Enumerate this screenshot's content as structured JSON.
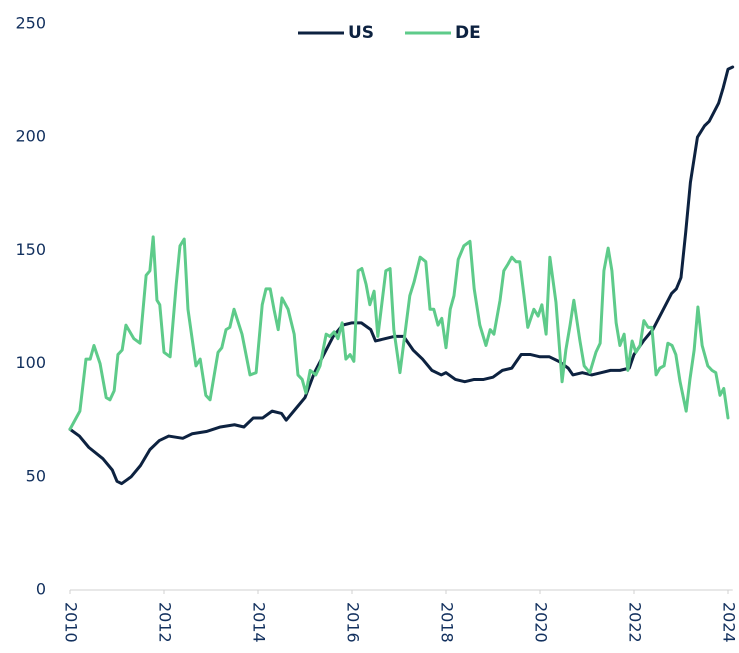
{
  "chart_data": {
    "type": "line",
    "series": [
      {
        "name": "US",
        "color": "#0d2240",
        "x": [
          2010.0,
          2010.2,
          2010.4,
          2010.7,
          2010.9,
          2011.0,
          2011.1,
          2011.3,
          2011.5,
          2011.7,
          2011.9,
          2012.1,
          2012.4,
          2012.6,
          2012.9,
          2013.2,
          2013.5,
          2013.7,
          2013.9,
          2014.1,
          2014.3,
          2014.5,
          2014.6,
          2014.8,
          2015.0,
          2015.2,
          2015.4,
          2015.6,
          2015.8,
          2016.0,
          2016.2,
          2016.4,
          2016.5,
          2016.7,
          2016.9,
          2017.1,
          2017.3,
          2017.5,
          2017.7,
          2017.9,
          2018.0,
          2018.2,
          2018.4,
          2018.6,
          2018.8,
          2019.0,
          2019.2,
          2019.4,
          2019.6,
          2019.8,
          2020.0,
          2020.2,
          2020.4,
          2020.6,
          2020.7,
          2020.9,
          2021.1,
          2021.3,
          2021.5,
          2021.7,
          2021.9,
          2022.0,
          2022.2,
          2022.4,
          2022.6,
          2022.8,
          2022.9,
          2023.0,
          2023.1,
          2023.2,
          2023.35,
          2023.5,
          2023.6,
          2023.8,
          2023.9,
          2024.0,
          2024.1
        ],
        "values": [
          71,
          68,
          63,
          58,
          53,
          48,
          47,
          50,
          55,
          62,
          66,
          68,
          67,
          69,
          70,
          72,
          73,
          72,
          76,
          76,
          79,
          78,
          75,
          80,
          85,
          96,
          104,
          112,
          117,
          118,
          118,
          115,
          110,
          111,
          112,
          112,
          106,
          102,
          97,
          95,
          96,
          93,
          92,
          93,
          93,
          94,
          97,
          98,
          104,
          104,
          103,
          103,
          101,
          98,
          95,
          96,
          95,
          96,
          97,
          97,
          98,
          104,
          110,
          115,
          123,
          131,
          133,
          138,
          158,
          180,
          200,
          205,
          207,
          215,
          222,
          230,
          231
        ]
      },
      {
        "name": "DE",
        "color": "#5ecb8a",
        "x": [
          2010.0,
          2010.21,
          2010.34,
          2010.43,
          2010.51,
          2010.64,
          2010.77,
          2010.85,
          2010.94,
          2011.02,
          2011.11,
          2011.19,
          2011.36,
          2011.49,
          2011.62,
          2011.7,
          2011.77,
          2011.85,
          2011.91,
          2012.0,
          2012.13,
          2012.26,
          2012.34,
          2012.43,
          2012.51,
          2012.68,
          2012.77,
          2012.89,
          2012.98,
          2013.15,
          2013.23,
          2013.32,
          2013.4,
          2013.49,
          2013.66,
          2013.83,
          2013.96,
          2014.09,
          2014.17,
          2014.26,
          2014.34,
          2014.43,
          2014.51,
          2014.64,
          2014.77,
          2014.85,
          2014.94,
          2015.02,
          2015.11,
          2015.23,
          2015.32,
          2015.45,
          2015.53,
          2015.62,
          2015.7,
          2015.79,
          2015.87,
          2015.96,
          2016.04,
          2016.13,
          2016.21,
          2016.3,
          2016.38,
          2016.47,
          2016.55,
          2016.72,
          2016.81,
          2016.89,
          2017.02,
          2017.15,
          2017.23,
          2017.32,
          2017.45,
          2017.57,
          2017.66,
          2017.74,
          2017.83,
          2017.91,
          2018.0,
          2018.09,
          2018.17,
          2018.26,
          2018.38,
          2018.51,
          2018.6,
          2018.72,
          2018.85,
          2018.94,
          2019.02,
          2019.15,
          2019.23,
          2019.32,
          2019.4,
          2019.49,
          2019.57,
          2019.66,
          2019.74,
          2019.87,
          2019.96,
          2020.04,
          2020.13,
          2020.21,
          2020.34,
          2020.47,
          2020.55,
          2020.64,
          2020.72,
          2020.85,
          2020.94,
          2021.06,
          2021.19,
          2021.28,
          2021.36,
          2021.45,
          2021.53,
          2021.62,
          2021.7,
          2021.79,
          2021.87,
          2021.96,
          2022.04,
          2022.13,
          2022.21,
          2022.3,
          2022.38,
          2022.47,
          2022.55,
          2022.64,
          2022.72,
          2022.81,
          2022.89,
          2022.98,
          2023.11,
          2023.19,
          2023.28,
          2023.36,
          2023.45,
          2023.57,
          2023.66,
          2023.74,
          2023.83,
          2023.91,
          2024.0
        ],
        "values": [
          71,
          79,
          102,
          102,
          108,
          100,
          85,
          84,
          88,
          104,
          106,
          117,
          111,
          109,
          139,
          141,
          156,
          128,
          126,
          105,
          103,
          135,
          152,
          155,
          124,
          99,
          102,
          86,
          84,
          105,
          107,
          115,
          116,
          124,
          113,
          95,
          96,
          126,
          133,
          133,
          124,
          115,
          129,
          124,
          113,
          95,
          93,
          87,
          97,
          95,
          99,
          113,
          112,
          114,
          111,
          118,
          102,
          104,
          101,
          141,
          142,
          135,
          126,
          132,
          112,
          141,
          142,
          115,
          96,
          117,
          130,
          136,
          147,
          145,
          124,
          124,
          117,
          120,
          107,
          124,
          130,
          146,
          152,
          154,
          133,
          117,
          108,
          115,
          113,
          128,
          141,
          144,
          147,
          145,
          145,
          130,
          116,
          124,
          121,
          126,
          113,
          147,
          127,
          92,
          106,
          117,
          128,
          110,
          99,
          96,
          105,
          109,
          141,
          151,
          141,
          118,
          108,
          113,
          97,
          110,
          105,
          108,
          119,
          116,
          116,
          95,
          98,
          99,
          109,
          108,
          104,
          92,
          79,
          93,
          106,
          125,
          108,
          99,
          97,
          96,
          86,
          89,
          76
        ]
      }
    ],
    "xlim": [
      2010,
      2024.1
    ],
    "xticks": [
      2010,
      2012,
      2014,
      2016,
      2018,
      2020,
      2022,
      2024
    ],
    "ylim": [
      0,
      250
    ],
    "yticks": [
      0,
      50,
      100,
      150,
      200,
      250
    ],
    "grid": false,
    "legend": "top"
  }
}
